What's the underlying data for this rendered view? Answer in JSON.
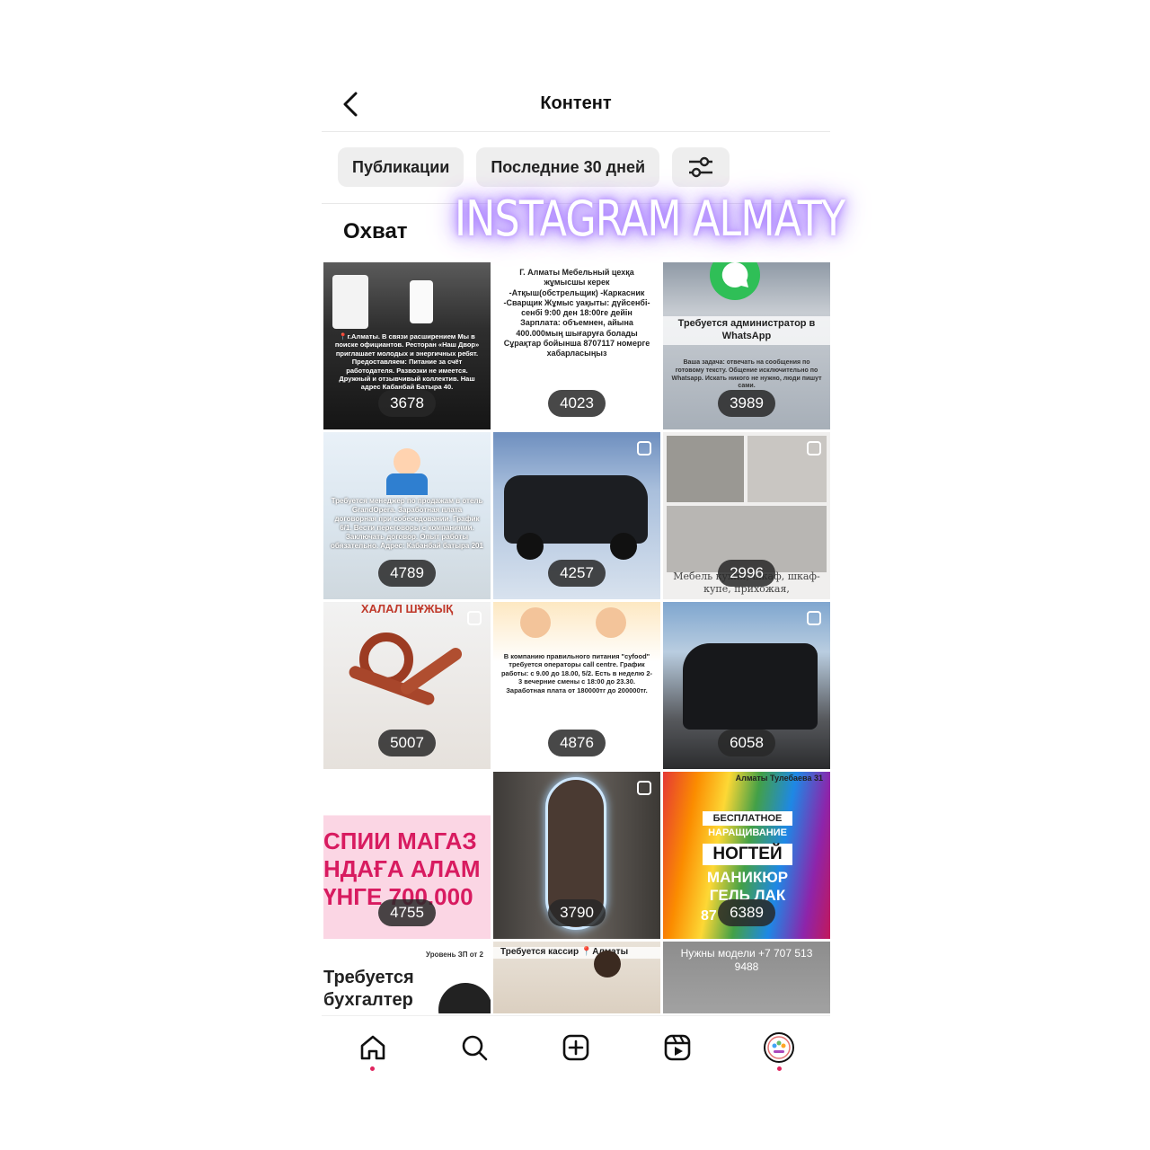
{
  "header": {
    "title": "Контент"
  },
  "filters": {
    "type": "Публикации",
    "period": "Последние 30 дней",
    "settings_icon": "sliders-icon"
  },
  "section": {
    "title": "Охват"
  },
  "watermark": "INSTAGRAM ALMATY",
  "posts": [
    {
      "reach": "3678",
      "caption": "📍г.Алматы. В связи расширением Мы в поиске официантов. Ресторан «Наш Двор» приглашает молодых и энергичных ребят. Предоставляем: Питание за счёт работодателя. Развозки не имеется. Дружный и отзывчивый коллектив. Наш адрес Кабанбай Батыра 40."
    },
    {
      "reach": "4023",
      "caption": "Г. Алматы Мебельный цехқа жұмысшы керек -Атқыш(обстрельщик) -Каркасник -Сварщик Жұмыс уақыты: дүйсенбі-сенбі 9:00 ден 18:00ге дейін Зарплата: объемнен, айына 400.000мың шығаруға болады Сұрақтар бойынша 8707117 номерге хабарласыңыз"
    },
    {
      "reach": "3989",
      "caption": "Требуется администратор в WhatsApp",
      "sub": "Ваша задача: отвечать на сообщения по готовому тексту. Общение исключительно по Whatsapp. Искать никого не нужно, люди пишут сами."
    },
    {
      "reach": "4789",
      "caption": "Требуется менеджер по продажам в отель GrandOpera. Заработная плата договорная при собеседовании. График 6/1. Вести переговоры с компаниями. Заключать договор. Опыт работы обязательно. Адрес: Кабанбай батыра 201"
    },
    {
      "reach": "4257",
      "caption": ""
    },
    {
      "reach": "2996",
      "caption": "Мебель кухня, шкаф, шкаф-купе, прихожая,"
    },
    {
      "reach": "5007",
      "caption": "ХАЛАЛ ШҰЖЫҚ"
    },
    {
      "reach": "4876",
      "caption": "В компанию правильного питания \"cyfood\" требуется операторы call centre. График работы: с 9.00 до 18.00, 5/2. Есть в неделю 2-3 вечерние смены с 18:00 до 23.30. Заработная плата от 180000тг до 200000тг."
    },
    {
      "reach": "6058",
      "caption": ""
    },
    {
      "reach": "4755",
      "caption": "СПИИ МАГАЗ НДАҒА АЛАМ ҮНГЕ 700.000"
    },
    {
      "reach": "3790",
      "caption": ""
    },
    {
      "reach": "6389",
      "caption": "Алматы Тулебаева 31",
      "lines": [
        "БЕСПЛАТНОЕ",
        "НАРАЩИВАНИЕ",
        "НОГТЕЙ",
        "МАНИКЮР",
        "ГЕЛЬ ЛАК",
        "87"
      ]
    },
    {
      "reach": "",
      "caption": "Требуется бухгалтер",
      "sub": "Уровень ЗП от 2"
    },
    {
      "reach": "",
      "caption": "Требуется кассир 📍Алматы"
    },
    {
      "reach": "",
      "caption": "Нужны модели +7 707 513 9488"
    }
  ],
  "nav": {
    "home": "home-icon",
    "search": "search-icon",
    "create": "plus-square-icon",
    "reels": "reels-icon",
    "profile": "profile-avatar"
  },
  "colors": {
    "badge": "#2b2b2b",
    "accent_dot": "#e0245e",
    "watermark_glow": "#9b6cff"
  }
}
